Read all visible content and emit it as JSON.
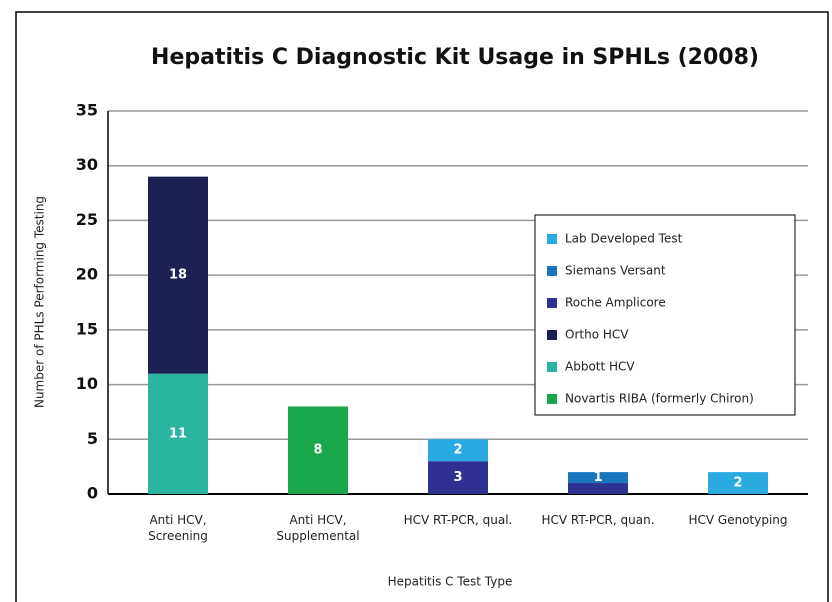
{
  "chart_data": {
    "type": "stacked_bar",
    "title": "Hepatitis C Diagnostic Kit Usage in SPHLs (2008)",
    "x_label": "Hepatitis C Test Type",
    "y_label": "Number of PHLs Performing Testing",
    "categories": [
      "Anti HCV, Screening",
      "Anti HCV, Supplemental",
      "HCV RT-PCR, qual.",
      "HCV RT-PCR, quan.",
      "HCV Genotyping"
    ],
    "series": [
      {
        "name": "Lab Developed Test",
        "color": "#29abe2",
        "values": [
          0,
          0,
          2,
          0,
          2
        ],
        "value_labels": [
          null,
          null,
          "2",
          null,
          "2"
        ]
      },
      {
        "name": "Siemans Versant",
        "color": "#1b75bc",
        "values": [
          0,
          0,
          0,
          1,
          0
        ],
        "value_labels": [
          null,
          null,
          null,
          "1",
          null
        ]
      },
      {
        "name": "Roche Amplicore",
        "color": "#2e3192",
        "values": [
          0,
          0,
          3,
          1,
          0
        ],
        "value_labels": [
          null,
          null,
          "3",
          null,
          null
        ]
      },
      {
        "name": "Ortho HCV",
        "color": "#1c2151",
        "values": [
          18,
          0,
          0,
          0,
          0
        ],
        "value_labels": [
          "18",
          null,
          null,
          null,
          null
        ]
      },
      {
        "name": "Abbott HCV",
        "color": "#2bb5a0",
        "values": [
          11,
          0,
          0,
          0,
          0
        ],
        "value_labels": [
          "11",
          null,
          null,
          null,
          null
        ]
      },
      {
        "name": "Novartis RIBA (formerly Chiron)",
        "color": "#1aa64a",
        "values": [
          0,
          8,
          0,
          0,
          0
        ],
        "value_labels": [
          null,
          "8",
          null,
          null,
          null
        ]
      }
    ],
    "ylim": [
      0,
      35
    ],
    "yticks": [
      0,
      5,
      10,
      15,
      20,
      25,
      30,
      35
    ],
    "grid": true,
    "legend": "right"
  }
}
